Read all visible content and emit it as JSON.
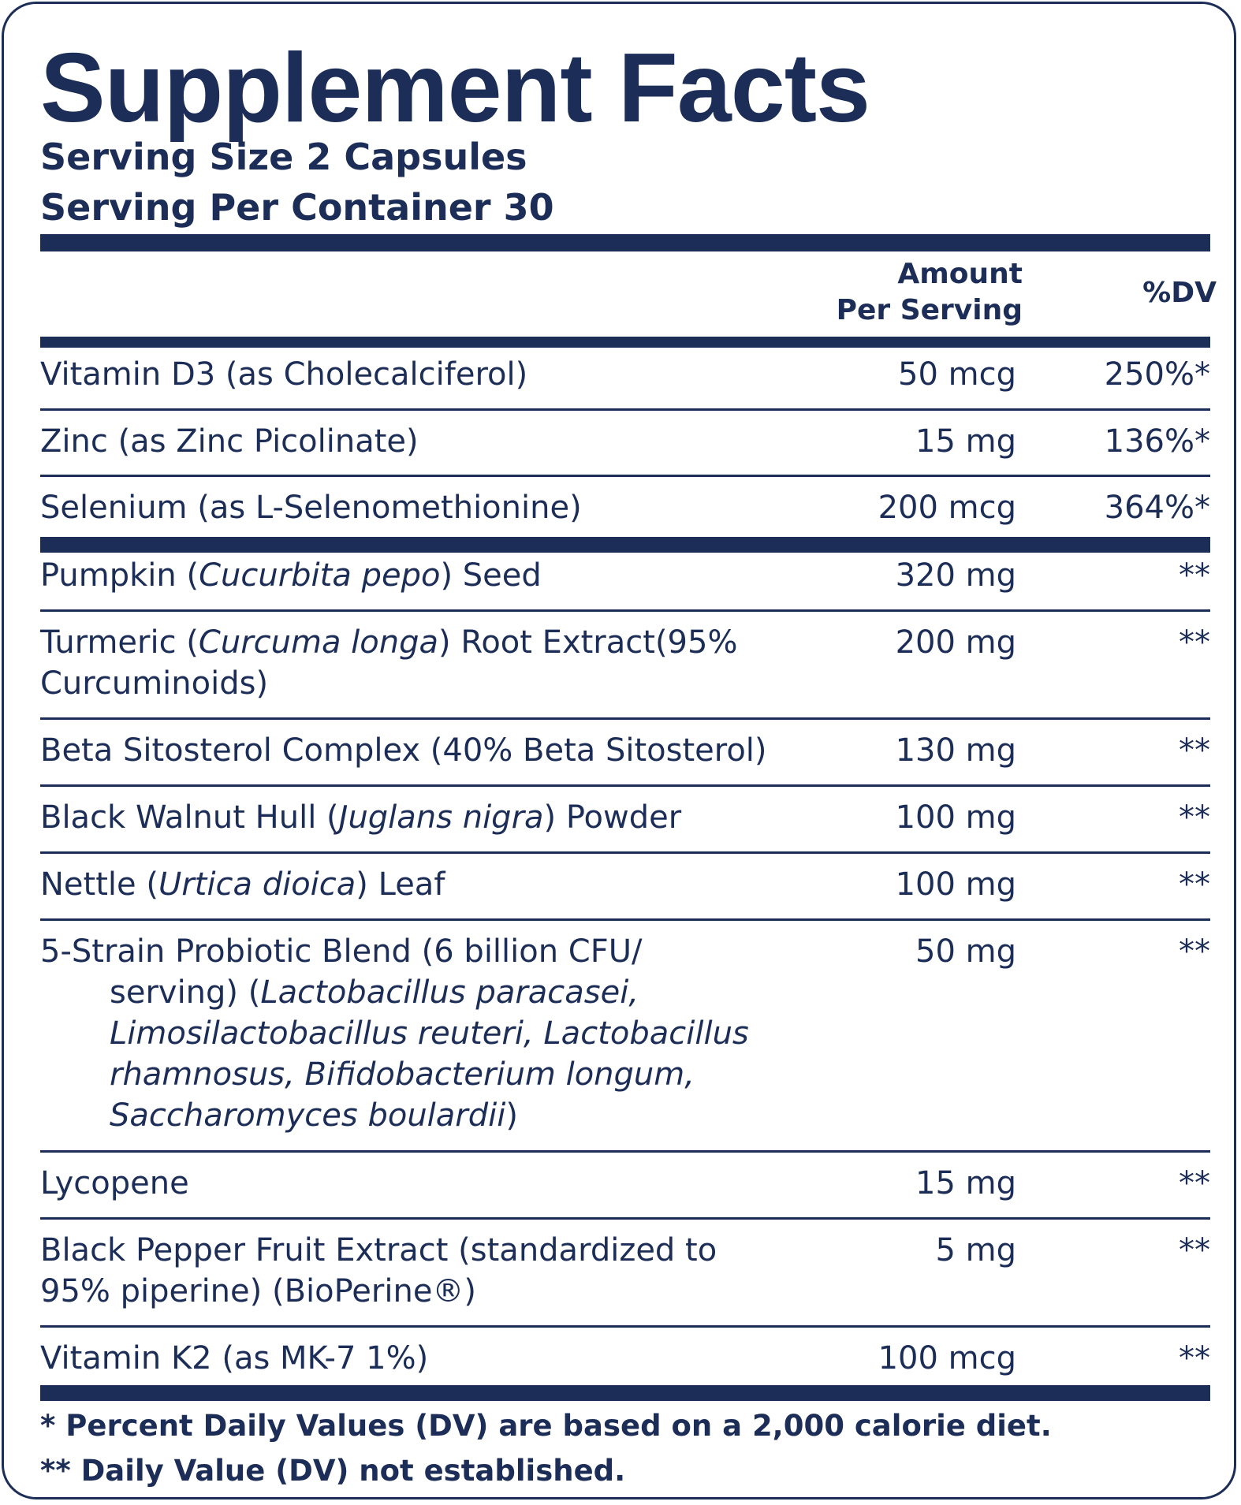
{
  "label": {
    "title": "Supplement Facts",
    "serving_size": "Serving Size 2 Capsules",
    "servings_per_container": "Serving Per Container 30",
    "header": {
      "amount_line1": "Amount",
      "amount_line2": "Per Serving",
      "dv": "%DV"
    },
    "rows": [
      {
        "name": "Vitamin D3 (as Cholecalciferol)",
        "amount": "50 mcg",
        "dv": "250%*"
      },
      {
        "name": "Zinc (as Zinc Picolinate)",
        "amount": "15 mg",
        "dv": "136%*"
      },
      {
        "name": "Selenium (as L-Selenomethionine)",
        "amount": "200 mcg",
        "dv": "364%*"
      },
      {
        "name_pre": "Pumpkin (",
        "name_italic": "Cucurbita pepo",
        "name_post": ") Seed",
        "amount": "320 mg",
        "dv": "**"
      },
      {
        "name_pre": "Turmeric (",
        "name_italic": "Curcuma longa",
        "name_post": ") Root Extract(95%",
        "name_line2": "Curcuminoids)",
        "amount": "200 mg",
        "dv": "**"
      },
      {
        "name": "Beta Sitosterol Complex (40% Beta Sitosterol)",
        "amount": "130 mg",
        "dv": "**"
      },
      {
        "name_pre": "Black Walnut Hull (",
        "name_italic": "Juglans nigra",
        "name_post": ") Powder",
        "amount": "100 mg",
        "dv": "**"
      },
      {
        "name_pre": "Nettle (",
        "name_italic": "Urtica dioica",
        "name_post": ") Leaf",
        "amount": "100 mg",
        "dv": "**"
      },
      {
        "name_line1": "5-Strain Probiotic Blend (6 billion CFU/",
        "name_line2_pre": "serving) (",
        "name_line2_italic": "Lactobacillus paracasei,",
        "name_line3_italic": "Limosilactobacillus reuteri, Lactobacillus",
        "name_line4_italic": "rhamnosus, Bifidobacterium longum,",
        "name_line5_italic": "Saccharomyces boulardii",
        "name_line5_post": ")",
        "amount": "50 mg",
        "dv": "**"
      },
      {
        "name": "Lycopene",
        "amount": "15 mg",
        "dv": "**"
      },
      {
        "name_line1": "Black Pepper Fruit Extract (standardized to",
        "name_line2": "95% piperine) (BioPerine®)",
        "amount": "5 mg",
        "dv": "**"
      },
      {
        "name": "Vitamin K2 (as MK-7 1%)",
        "amount": "100 mcg",
        "dv": "**"
      }
    ],
    "footnote_1": "* Percent Daily Values (DV) are based on a 2,000 calorie diet.",
    "footnote_2": "** Daily Value (DV) not established."
  },
  "colors": {
    "ink": "#1c2d57",
    "background": "#ffffff"
  }
}
